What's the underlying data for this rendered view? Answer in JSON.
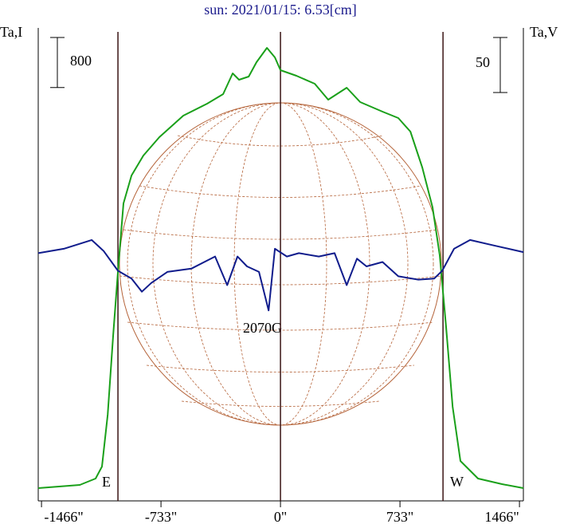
{
  "chart_data": {
    "type": "line",
    "title": "sun: 2021/01/15: 6.53[cm]",
    "ylabel": "Ta,I",
    "y2label": "Ta,V",
    "annotations": [
      "E",
      "W",
      "2070G"
    ],
    "scale_bars": [
      {
        "label": "800",
        "value": 800,
        "axis": "y"
      },
      {
        "label": "50",
        "value": 50,
        "axis": "y2"
      }
    ],
    "vertical_lines": [
      -997,
      0,
      997
    ],
    "xlim": [
      -1486,
      1490
    ],
    "xticks": [
      {
        "value": -1466,
        "label": "-1466\""
      },
      {
        "value": -733,
        "label": "-733\""
      },
      {
        "value": 0,
        "label": "0\""
      },
      {
        "value": 733,
        "label": "733\""
      },
      {
        "value": 1466,
        "label": "1466\""
      }
    ],
    "ylim": [
      0,
      7500
    ],
    "y2lim": [
      -225,
      201
    ],
    "series": [
      {
        "name": "I",
        "color": "#1aa01a",
        "x": [
          -1486,
          -1231,
          -1134,
          -1095,
          -1060,
          -1026,
          -997,
          -963,
          -914,
          -841,
          -743,
          -596,
          -450,
          -352,
          -293,
          -254,
          -195,
          -147,
          -83,
          -34,
          0,
          98,
          210,
          293,
          406,
          489,
          626,
          723,
          797,
          870,
          933,
          977,
          1016,
          1056,
          1104,
          1212,
          1359,
          1490
        ],
        "values": [
          204,
          255,
          357,
          548,
          1378,
          2653,
          3673,
          4758,
          5204,
          5523,
          5816,
          6161,
          6352,
          6505,
          6837,
          6735,
          6786,
          7015,
          7245,
          7092,
          6888,
          6798,
          6671,
          6416,
          6607,
          6378,
          6224,
          6122,
          5905,
          5332,
          4694,
          3929,
          2781,
          1505,
          638,
          357,
          268,
          204
        ]
      },
      {
        "name": "V",
        "color": "#101c8c",
        "axis": "y2",
        "x": [
          -1486,
          -1329,
          -1158,
          -1085,
          -997,
          -914,
          -850,
          -792,
          -694,
          -547,
          -401,
          -327,
          -264,
          -205,
          -132,
          -73,
          -34,
          39,
          113,
          235,
          332,
          406,
          469,
          528,
          626,
          723,
          846,
          943,
          992,
          1065,
          1163,
          1310,
          1490
        ],
        "values": [
          0,
          4,
          12,
          2,
          -16,
          -23,
          -35,
          -27,
          -17,
          -14,
          -3,
          -29,
          -3,
          -12,
          -17,
          -52,
          4,
          -3,
          0,
          -3,
          0,
          -29,
          -5,
          -12,
          -8,
          -21,
          -24,
          -23,
          -16,
          4,
          12,
          7,
          1
        ]
      }
    ]
  }
}
